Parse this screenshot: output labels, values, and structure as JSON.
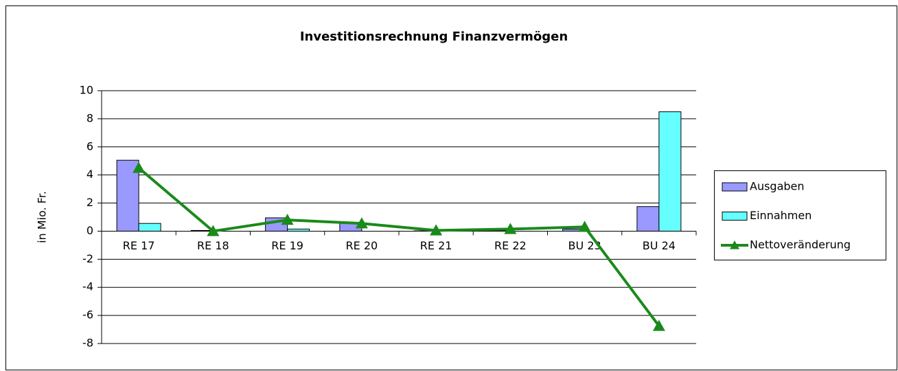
{
  "chart_data": {
    "type": "bar-line",
    "title": "Investitionsrechnung Finanzvermögen",
    "y_label": "in Mio. Fr.",
    "categories": [
      "RE 17",
      "RE 18",
      "RE 19",
      "RE 20",
      "RE 21",
      "RE 22",
      "BU 23",
      "BU 24"
    ],
    "series": [
      {
        "name": "Ausgaben",
        "type": "bar",
        "color": "#9999ff",
        "values": [
          5.05,
          0.05,
          0.95,
          0.55,
          0.02,
          0.05,
          0.15,
          1.75
        ]
      },
      {
        "name": "Einnahmen",
        "type": "bar",
        "color": "#66ffff",
        "values": [
          0.55,
          0,
          0.15,
          0,
          0,
          0,
          0,
          8.5
        ]
      },
      {
        "name": "Nettoveränderung",
        "type": "line",
        "color": "#1a8a1a",
        "values": [
          4.5,
          0,
          0.8,
          0.55,
          0.05,
          0.15,
          0.3,
          -6.75
        ]
      }
    ],
    "ylim": [
      -8,
      10
    ],
    "yticks": [
      -8,
      -6,
      -4,
      -2,
      0,
      2,
      4,
      6,
      8,
      10
    ],
    "grid": true,
    "legend": "right"
  }
}
